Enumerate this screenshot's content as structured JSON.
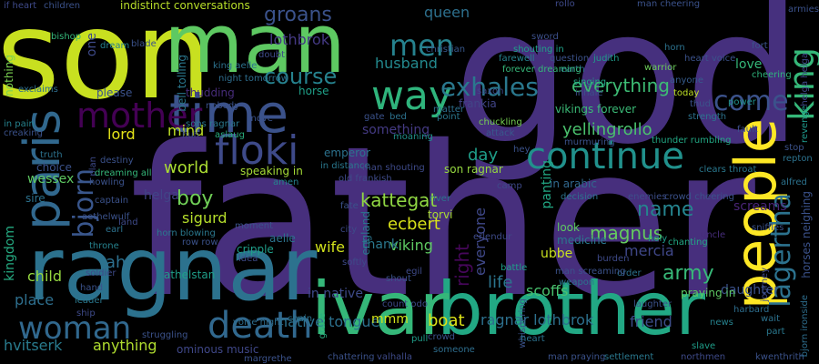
{
  "words": [
    {
      "text": "father",
      "color": "#472f7d"
    },
    {
      "text": "god",
      "color": "#46307e"
    },
    {
      "text": "son",
      "color": "#c8e020"
    },
    {
      "text": "ragnar",
      "color": "#2c728e"
    },
    {
      "text": "brother",
      "color": "#22a884"
    },
    {
      "text": "ivar",
      "color": "#35b779"
    },
    {
      "text": "man",
      "color": "#5ec962"
    },
    {
      "text": "people",
      "color": "#fde725"
    },
    {
      "text": "time",
      "color": "#3b528b"
    },
    {
      "text": "paris",
      "color": "#31688e"
    },
    {
      "text": "mother",
      "color": "#440154"
    },
    {
      "text": "king",
      "color": "#35b779"
    },
    {
      "text": "continue",
      "color": "#21918c"
    },
    {
      "text": "floki",
      "color": "#3e4a89"
    },
    {
      "text": "way",
      "color": "#2fb47c"
    },
    {
      "text": "woman",
      "color": "#31688e"
    },
    {
      "text": "death",
      "color": "#31688e"
    },
    {
      "text": "men",
      "color": "#26828e"
    },
    {
      "text": "exhales",
      "color": "#2a788e"
    },
    {
      "text": "come",
      "color": "#3b528b"
    },
    {
      "text": "bjorn",
      "color": "#39568c"
    },
    {
      "text": "lagertha",
      "color": "#2c728e"
    },
    {
      "text": "everything",
      "color": "#3dbc74"
    },
    {
      "text": "course",
      "color": "#26828e"
    },
    {
      "text": "groans",
      "color": "#3b528b"
    },
    {
      "text": "lothbrok",
      "color": "#443983"
    },
    {
      "text": "husband",
      "color": "#23898e"
    },
    {
      "text": "kattegat",
      "color": "#90d743"
    },
    {
      "text": "yellingrollo",
      "color": "#4ac16d"
    },
    {
      "text": "day",
      "color": "#1f9e89"
    },
    {
      "text": "world",
      "color": "#aadc32"
    },
    {
      "text": "lord",
      "color": "#e5e419"
    },
    {
      "text": "mind",
      "color": "#bddf26"
    },
    {
      "text": "boy",
      "color": "#70cf57"
    },
    {
      "text": "sigurd",
      "color": "#b5de2b"
    },
    {
      "text": "helga",
      "color": "#414487"
    },
    {
      "text": "ecbert",
      "color": "#d8e219"
    },
    {
      "text": "viking",
      "color": "#5ec962"
    },
    {
      "text": "name",
      "color": "#25848e"
    },
    {
      "text": "magnus",
      "color": "#65cb5e"
    },
    {
      "text": "mercia",
      "color": "#3f4788"
    },
    {
      "text": "army",
      "color": "#37b878"
    },
    {
      "text": "ubbe",
      "color": "#c8e020"
    },
    {
      "text": "wife",
      "color": "#d0e11c"
    },
    {
      "text": "thank",
      "color": "#2a788e"
    },
    {
      "text": "everyone",
      "color": "#3f4889"
    },
    {
      "text": "panting",
      "color": "#22a884"
    },
    {
      "text": "right",
      "color": "#46075a"
    },
    {
      "text": "life",
      "color": "#2b758e"
    },
    {
      "text": "scoffs",
      "color": "#48c16e"
    },
    {
      "text": "child",
      "color": "#95d840"
    },
    {
      "text": "place",
      "color": "#2e6f8e"
    },
    {
      "text": "in native",
      "color": "#3e4a89"
    },
    {
      "text": "native tongue",
      "color": "#2c718e"
    },
    {
      "text": "boat",
      "color": "#dde318"
    },
    {
      "text": "ragnar lothbrok",
      "color": "#2d708e"
    },
    {
      "text": "friend",
      "color": "#3d4d8a"
    },
    {
      "text": "anything",
      "color": "#b0dd2f"
    },
    {
      "text": "hvitserk",
      "color": "#297b8e"
    },
    {
      "text": "ominous music",
      "color": "#3f4788"
    },
    {
      "text": "mmm",
      "color": "#d2e21b"
    },
    {
      "text": "love",
      "color": "#35b779"
    },
    {
      "text": "queen",
      "color": "#2d708e"
    },
    {
      "text": "ah",
      "color": "#2d708e"
    },
    {
      "text": "kingdom",
      "color": "#25ab82"
    },
    {
      "text": "nothing",
      "color": "#7ad151"
    },
    {
      "text": "one",
      "color": "#3e4a89"
    },
    {
      "text": "something",
      "color": "#443a83"
    },
    {
      "text": "speaking in",
      "color": "#a5db36"
    },
    {
      "text": "emperor",
      "color": "#2c728e"
    },
    {
      "text": "son ragnar",
      "color": "#95d840"
    },
    {
      "text": "england",
      "color": "#2b758e"
    },
    {
      "text": "daughter",
      "color": "#3b528b"
    },
    {
      "text": "screams",
      "color": "#482576"
    },
    {
      "text": "in arabic",
      "color": "#31688e"
    },
    {
      "text": "indistinct conversations",
      "color": "#b8de29"
    },
    {
      "text": "if heart",
      "color": "#3e4989"
    },
    {
      "text": "children",
      "color": "#3b528b"
    },
    {
      "text": "bishop",
      "color": "#35b779"
    },
    {
      "text": "christian",
      "color": "#38588c"
    },
    {
      "text": "shouting in",
      "color": "#1fa188"
    },
    {
      "text": "vikings forever",
      "color": "#3aba76"
    },
    {
      "text": "frankia",
      "color": "#414487"
    },
    {
      "text": "singing",
      "color": "#20a386"
    },
    {
      "text": "inhale",
      "color": "#3c4f8a"
    },
    {
      "text": "anyone",
      "color": "#365c8d"
    },
    {
      "text": "today",
      "color": "#bddf26"
    },
    {
      "text": "cheering",
      "color": "#2fb47c"
    },
    {
      "text": "chuckling",
      "color": "#77d153"
    },
    {
      "text": "judith",
      "color": "#1f9a8a"
    },
    {
      "text": "matter",
      "color": "#2d708e"
    },
    {
      "text": "earth",
      "color": "#2e6e8e"
    },
    {
      "text": "farewell",
      "color": "#26828e"
    },
    {
      "text": "sword",
      "color": "#3c508b"
    },
    {
      "text": "warrior",
      "color": "#6ccd5a"
    },
    {
      "text": "power",
      "color": "#21918c"
    },
    {
      "text": "please",
      "color": "#3b528b"
    },
    {
      "text": "bell tolling",
      "color": "#2a788e"
    },
    {
      "text": "horse",
      "color": "#1fa088"
    },
    {
      "text": "thudding",
      "color": "#472c7a"
    },
    {
      "text": "fault",
      "color": "#3c4f8a"
    },
    {
      "text": "revenge",
      "color": "#1f988b"
    },
    {
      "text": "thunder rumbling",
      "color": "#22a884"
    },
    {
      "text": "murmuring",
      "color": "#3b528b"
    },
    {
      "text": "attack",
      "color": "#38598c"
    },
    {
      "text": "decision",
      "color": "#2c738e"
    },
    {
      "text": "crowd cheering",
      "color": "#3b528b"
    },
    {
      "text": "enemies",
      "color": "#3d4e8a"
    },
    {
      "text": "in distance",
      "color": "#2a788e"
    },
    {
      "text": "old frankish",
      "color": "#3e4a89"
    },
    {
      "text": "moaning",
      "color": "#21918c"
    },
    {
      "text": "torvi",
      "color": "#aadc32"
    },
    {
      "text": "kwenthrith",
      "color": "#3b528b"
    },
    {
      "text": "bjorn ironside",
      "color": "#2e6e8e"
    },
    {
      "text": "horses neighing",
      "color": "#3b528b"
    },
    {
      "text": "helga helga",
      "color": "#3f4889"
    },
    {
      "text": "alfred",
      "color": "#2c728e"
    },
    {
      "text": "harbard",
      "color": "#2e6e8e"
    },
    {
      "text": "laughter",
      "color": "#3b528b"
    },
    {
      "text": "praying in",
      "color": "#5ec962"
    },
    {
      "text": "holy",
      "color": "#1f9e89"
    },
    {
      "text": "chanting",
      "color": "#22a884"
    },
    {
      "text": "uncle",
      "color": "#472d7b"
    },
    {
      "text": "look",
      "color": "#5ec962"
    },
    {
      "text": "medicine",
      "color": "#2a788e"
    },
    {
      "text": "battle",
      "color": "#1fa088"
    },
    {
      "text": "egil",
      "color": "#3e4a89"
    },
    {
      "text": "order",
      "color": "#2c728e"
    },
    {
      "text": "erlendur",
      "color": "#3e4a89"
    },
    {
      "text": "whispering",
      "color": "#3b528b"
    },
    {
      "text": "man praying",
      "color": "#3b528b"
    },
    {
      "text": "settlement",
      "color": "#2a788e"
    },
    {
      "text": "northmen",
      "color": "#3e4a89"
    },
    {
      "text": "slave",
      "color": "#1f9e89"
    },
    {
      "text": "news",
      "color": "#26828e"
    },
    {
      "text": "wait",
      "color": "#2c728e"
    },
    {
      "text": "part",
      "color": "#2a788e"
    },
    {
      "text": "grace",
      "color": "#29af7f"
    },
    {
      "text": "pull",
      "color": "#1f9e89"
    },
    {
      "text": "someone",
      "color": "#2e6e8e"
    },
    {
      "text": "crowd",
      "color": "#3b528b"
    },
    {
      "text": "heart",
      "color": "#2c728e"
    },
    {
      "text": "chattering",
      "color": "#3b528b"
    },
    {
      "text": "valhalla",
      "color": "#3e4a89"
    },
    {
      "text": "margrethe",
      "color": "#3b528b"
    },
    {
      "text": "struggling",
      "color": "#3b528b"
    },
    {
      "text": "voice night",
      "color": "#2e6e8e"
    },
    {
      "text": "chain",
      "color": "#2c728e"
    },
    {
      "text": "ship",
      "color": "#3e4a89"
    },
    {
      "text": "hand",
      "color": "#3b528b"
    },
    {
      "text": "leader",
      "color": "#2a788e"
    },
    {
      "text": "athelstan",
      "color": "#1f9e89"
    },
    {
      "text": "soldier",
      "color": "#3e4a89"
    },
    {
      "text": "throne",
      "color": "#26828e"
    },
    {
      "text": "aethelwulf",
      "color": "#3b528b"
    },
    {
      "text": "earl",
      "color": "#2c728e"
    },
    {
      "text": "land",
      "color": "#3e4a89"
    },
    {
      "text": "captain",
      "color": "#3b528b"
    },
    {
      "text": "wessex",
      "color": "#5ec962"
    },
    {
      "text": "sire",
      "color": "#2c728e"
    },
    {
      "text": "choice",
      "color": "#3b528b"
    },
    {
      "text": "truth",
      "color": "#2c728e"
    },
    {
      "text": "in pain",
      "color": "#26828e"
    },
    {
      "text": "creaking",
      "color": "#3b528b"
    },
    {
      "text": "exclaims",
      "color": "#2e6e8e"
    },
    {
      "text": "plan",
      "color": "#3e4a89"
    },
    {
      "text": "destiny",
      "color": "#3b528b"
    },
    {
      "text": "dreaming all",
      "color": "#35b779"
    },
    {
      "text": "howling",
      "color": "#3b528b"
    },
    {
      "text": "sons ragnar",
      "color": "#2a788e"
    },
    {
      "text": "aslaug",
      "color": "#29af7f"
    },
    {
      "text": "huh",
      "color": "#3e4a89"
    },
    {
      "text": "nobody",
      "color": "#3b528b"
    },
    {
      "text": "king aelle",
      "color": "#2c728e"
    },
    {
      "text": "move",
      "color": "#3b528b"
    },
    {
      "text": "horn blowing",
      "color": "#2a788e"
    },
    {
      "text": "row row",
      "color": "#3b528b"
    },
    {
      "text": "cripple",
      "color": "#1f9e89"
    },
    {
      "text": "idea",
      "color": "#3e4a89"
    },
    {
      "text": "moment",
      "color": "#3b528b"
    },
    {
      "text": "aelle",
      "color": "#2c728e"
    },
    {
      "text": "amen",
      "color": "#26828e"
    },
    {
      "text": "city",
      "color": "#3e4a89"
    },
    {
      "text": "fate",
      "color": "#3b528b"
    },
    {
      "text": "river",
      "color": "#2c728e"
    },
    {
      "text": "softly",
      "color": "#3e4a89"
    },
    {
      "text": "shout",
      "color": "#3b528b"
    },
    {
      "text": "man shouting",
      "color": "#3e4a89"
    },
    {
      "text": "gate",
      "color": "#3b528b"
    },
    {
      "text": "bed",
      "color": "#2c728e"
    },
    {
      "text": "point",
      "color": "#2a788e"
    },
    {
      "text": "forever dreaming",
      "color": "#35b779"
    },
    {
      "text": "man cheering",
      "color": "#3b528b"
    },
    {
      "text": "rollo",
      "color": "#3e4a89"
    },
    {
      "text": "horn",
      "color": "#2c728e"
    },
    {
      "text": "heart voice",
      "color": "#3b528b"
    },
    {
      "text": "fort",
      "color": "#3b528b"
    },
    {
      "text": "dream",
      "color": "#26828e"
    },
    {
      "text": "blade",
      "color": "#3b528b"
    },
    {
      "text": "doubt",
      "color": "#3e4a89"
    },
    {
      "text": "armies",
      "color": "#3b528b"
    },
    {
      "text": "night tomorrow",
      "color": "#2e6e8e"
    },
    {
      "text": "question",
      "color": "#3b528b"
    },
    {
      "text": "saxon",
      "color": "#3e4a89"
    },
    {
      "text": "strength",
      "color": "#2c728e"
    },
    {
      "text": "thud",
      "color": "#3b528b"
    },
    {
      "text": "count odo",
      "color": "#3e4a89"
    },
    {
      "text": "stop",
      "color": "#3b528b"
    },
    {
      "text": "repton",
      "color": "#2c728e"
    },
    {
      "text": "journey",
      "color": "#3e4a89"
    },
    {
      "text": "sniffles",
      "color": "#3b528b"
    },
    {
      "text": "clears throat",
      "color": "#2a788e"
    },
    {
      "text": "camp",
      "color": "#3e4a89"
    },
    {
      "text": "hey",
      "color": "#3b528b"
    },
    {
      "text": "man screaming",
      "color": "#3b528b"
    },
    {
      "text": "weapon",
      "color": "#2c728e"
    },
    {
      "text": "burden",
      "color": "#3e4a89"
    }
  ]
}
